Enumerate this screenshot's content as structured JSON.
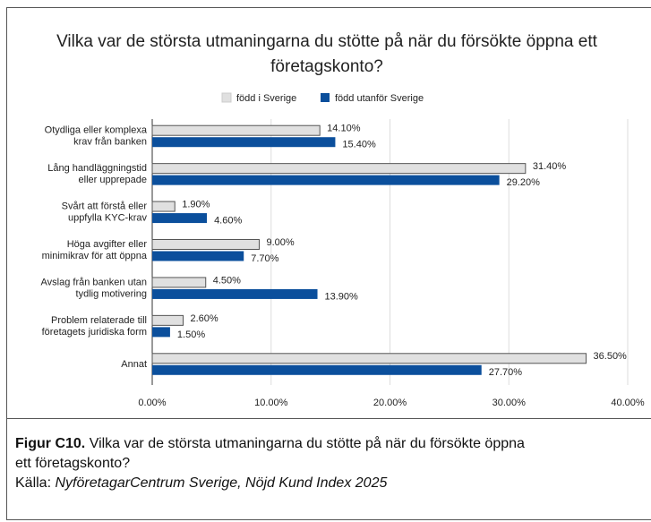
{
  "chart_data": {
    "type": "bar",
    "orientation": "horizontal",
    "title": "Vilka var de största utmaningarna du stötte på när du försökte öppna ett företagskonto?",
    "categories": [
      "Otydliga eller komplexa\nkrav från banken",
      "Lång handläggningstid\neller upprepade",
      "Svårt att förstå eller\nuppfylla KYC-krav",
      "Höga avgifter eller\nminimikrav för att öppna",
      "Avslag från banken utan\ntydlig motivering",
      "Problem relaterade till\nföretagets juridiska form",
      "Annat"
    ],
    "series": [
      {
        "name": "född i Sverige",
        "color": "#e0e0e0",
        "values": [
          14.1,
          31.4,
          1.9,
          9.0,
          4.5,
          2.6,
          36.5
        ],
        "value_labels": [
          "14.10%",
          "31.40%",
          "1.90%",
          "9.00%",
          "4.50%",
          "2.60%",
          "36.50%"
        ]
      },
      {
        "name": "född utanför Sverige",
        "color": "#0b4f9c",
        "values": [
          15.4,
          29.2,
          4.6,
          7.7,
          13.9,
          1.5,
          27.7
        ],
        "value_labels": [
          "15.40%",
          "29.20%",
          "4.60%",
          "7.70%",
          "13.90%",
          "1.50%",
          "27.70%"
        ]
      }
    ],
    "xlim": [
      0,
      40
    ],
    "xticks": [
      {
        "value": 0,
        "label": "0.00%"
      },
      {
        "value": 10,
        "label": "10.00%"
      },
      {
        "value": 20,
        "label": "20.00%"
      },
      {
        "value": 30,
        "label": "30.00%"
      },
      {
        "value": 40,
        "label": "40.00%"
      }
    ],
    "grid": true,
    "legend": "top"
  },
  "caption": {
    "label": "Figur C10.",
    "text": "Vilka var de största utmaningarna du stötte på när du försökte öppna ett företagskonto?",
    "source_label": "Källa:",
    "source": "NyföretagarCentrum Sverige, Nöjd Kund Index 2025"
  }
}
